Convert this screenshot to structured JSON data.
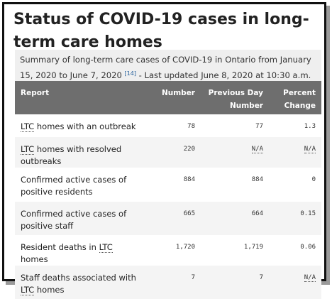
{
  "title": "Status of COVID-19 cases in long-term care homes",
  "caption": {
    "text": "Summary of long-term care cases of COVID-19 in Ontario from January 15, 2020 to June 7, 2020",
    "ref": "[14]",
    "updated": " - Last updated June 8, 2020 at 10:30 a.m."
  },
  "table": {
    "headers": {
      "report": "Report",
      "number": "Number",
      "previous_line1": "Previous Day",
      "previous_line2": "Number",
      "percent_line1": "Percent",
      "percent_line2": "Change"
    },
    "rows": [
      {
        "label_pre": "",
        "abbr": "LTC",
        "label_post": " homes with an outbreak",
        "number": "78",
        "previous": "77",
        "change": "1.3",
        "change_abbr": false
      },
      {
        "label_pre": "",
        "abbr": "LTC",
        "label_post": " homes with resolved outbreaks",
        "number": "220",
        "previous": "N/A",
        "change": "N/A",
        "change_abbr": true
      },
      {
        "label_pre": "Confirmed active cases of positive residents",
        "abbr": "",
        "label_post": "",
        "number": "884",
        "previous": "884",
        "change": "0",
        "change_abbr": false
      },
      {
        "label_pre": "Confirmed active cases of positive staff",
        "abbr": "",
        "label_post": "",
        "number": "665",
        "previous": "664",
        "change": "0.15",
        "change_abbr": false
      },
      {
        "label_pre": "Resident deaths in ",
        "abbr": "LTC",
        "label_post": " homes",
        "number": "1,720",
        "previous": "1,719",
        "change": "0.06",
        "change_abbr": false
      },
      {
        "label_pre": "Staff deaths associated with ",
        "abbr": "LTC",
        "label_post": " homes",
        "number": "7",
        "previous": "7",
        "change": "N/A",
        "change_abbr": true
      }
    ]
  }
}
